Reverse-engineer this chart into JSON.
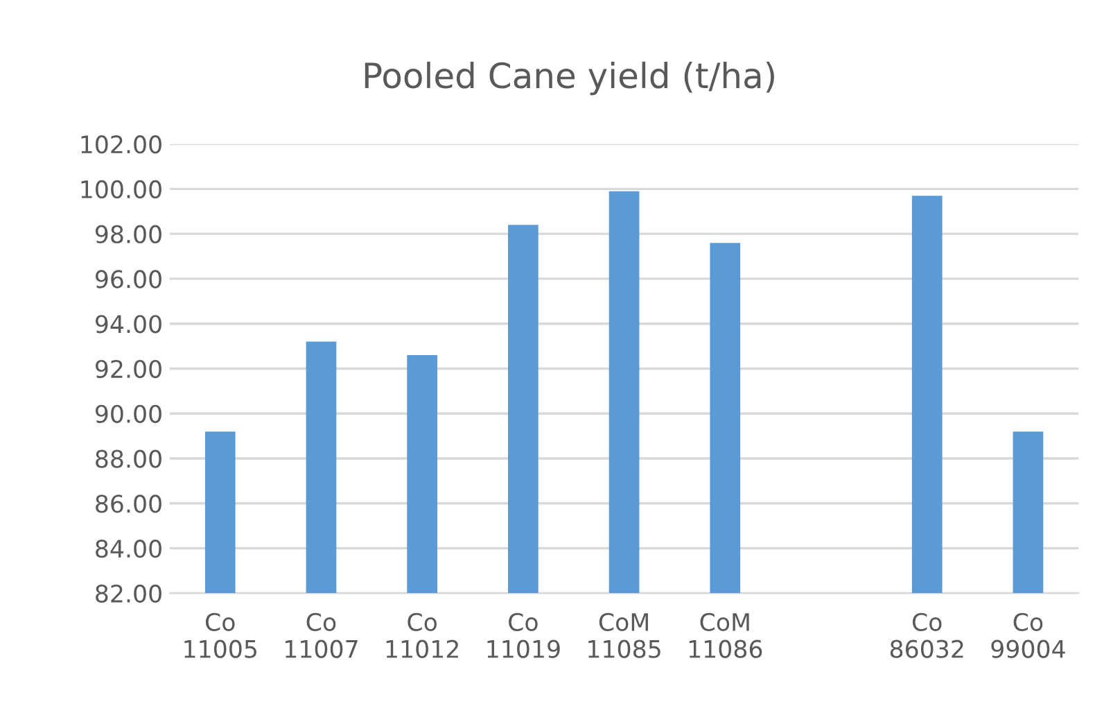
{
  "chart_data": {
    "type": "bar",
    "title": "Pooled Cane yield (t/ha)",
    "categories": [
      "Co\n11005",
      "Co\n11007",
      "Co\n11012",
      "Co\n11019",
      "CoM\n11085",
      "CoM\n11086",
      null,
      "Co\n86032",
      "Co\n99004"
    ],
    "values": [
      89.2,
      93.2,
      92.6,
      98.4,
      99.9,
      97.6,
      null,
      99.7,
      89.2
    ],
    "color": "#5b9bd5",
    "ylim": [
      82,
      102
    ],
    "yticks": [
      {
        "value": 82,
        "label": "82.00"
      },
      {
        "value": 84,
        "label": "84.00"
      },
      {
        "value": 86,
        "label": "86.00"
      },
      {
        "value": 88,
        "label": "88.00"
      },
      {
        "value": 90,
        "label": "90.00"
      },
      {
        "value": 92,
        "label": "92.00"
      },
      {
        "value": 94,
        "label": "94.00"
      },
      {
        "value": 96,
        "label": "96.00"
      },
      {
        "value": 98,
        "label": "98.00"
      },
      {
        "value": 100,
        "label": "100.00"
      },
      {
        "value": 102,
        "label": "102.00"
      }
    ],
    "grid": "y",
    "legend": false
  }
}
